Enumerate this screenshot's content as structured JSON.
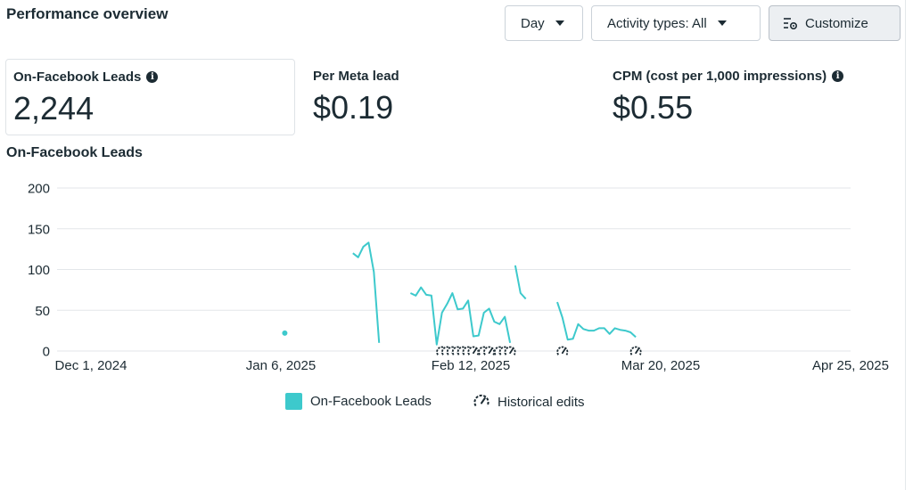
{
  "header": {
    "title": "Performance overview",
    "day_label": "Day",
    "activity_label": "Activity types: All",
    "customize_label": "Customize"
  },
  "metrics": [
    {
      "label": "On-Facebook Leads",
      "value": "2,244",
      "info": true
    },
    {
      "label": "Per Meta lead",
      "value": "$0.19",
      "info": false
    },
    {
      "label": "CPM (cost per 1,000 impressions)",
      "value": "$0.55",
      "info": true
    }
  ],
  "chart_title": "On-Facebook Leads",
  "colors": {
    "series": "#3dc9cc",
    "grid": "#e3e6ea",
    "text": "#1c2b33"
  },
  "chart_data": {
    "type": "line",
    "title": "On-Facebook Leads",
    "xlabel": "",
    "ylabel": "",
    "ylim": [
      0,
      200
    ],
    "y_ticks": [
      0,
      50,
      100,
      150,
      200
    ],
    "x_ticks": [
      "Dec 1, 2024",
      "Jan 6, 2025",
      "Feb 12, 2025",
      "Mar 20, 2025",
      "Apr 25, 2025"
    ],
    "x_range": [
      "2024-12-01",
      "2025-04-25"
    ],
    "grid": true,
    "legend_position": "bottom",
    "series": [
      {
        "name": "On-Facebook Leads",
        "segments": [
          [
            [
              "2025-01-07",
              22
            ]
          ],
          [
            [
              "2025-01-20",
              120
            ],
            [
              "2025-01-21",
              115
            ],
            [
              "2025-01-22",
              128
            ],
            [
              "2025-01-23",
              133
            ],
            [
              "2025-01-24",
              97
            ],
            [
              "2025-01-25",
              10
            ]
          ],
          [
            [
              "2025-01-31",
              71
            ],
            [
              "2025-02-01",
              68
            ],
            [
              "2025-02-02",
              78
            ],
            [
              "2025-02-03",
              69
            ],
            [
              "2025-02-04",
              68
            ],
            [
              "2025-02-05",
              8
            ],
            [
              "2025-02-06",
              47
            ],
            [
              "2025-02-07",
              58
            ],
            [
              "2025-02-08",
              71
            ],
            [
              "2025-02-09",
              51
            ],
            [
              "2025-02-10",
              52
            ],
            [
              "2025-02-11",
              62
            ],
            [
              "2025-02-12",
              18
            ],
            [
              "2025-02-13",
              19
            ],
            [
              "2025-02-14",
              47
            ],
            [
              "2025-02-15",
              52
            ],
            [
              "2025-02-16",
              36
            ],
            [
              "2025-02-17",
              33
            ],
            [
              "2025-02-18",
              42
            ],
            [
              "2025-02-19",
              10
            ]
          ],
          [
            [
              "2025-02-20",
              105
            ],
            [
              "2025-02-21",
              71
            ],
            [
              "2025-02-22",
              64
            ]
          ],
          [
            [
              "2025-02-28",
              60
            ],
            [
              "2025-03-01",
              41
            ],
            [
              "2025-03-02",
              14
            ],
            [
              "2025-03-03",
              15
            ],
            [
              "2025-03-04",
              33
            ],
            [
              "2025-03-05",
              27
            ],
            [
              "2025-03-06",
              25
            ],
            [
              "2025-03-07",
              25
            ],
            [
              "2025-03-08",
              28
            ],
            [
              "2025-03-09",
              28
            ],
            [
              "2025-03-10",
              21
            ],
            [
              "2025-03-11",
              28
            ],
            [
              "2025-03-12",
              26
            ],
            [
              "2025-03-13",
              25
            ],
            [
              "2025-03-14",
              23
            ],
            [
              "2025-03-15",
              17
            ]
          ]
        ]
      }
    ],
    "historical_edits": [
      "2025-02-06",
      "2025-02-07",
      "2025-02-08",
      "2025-02-09",
      "2025-02-10",
      "2025-02-11",
      "2025-02-12",
      "2025-02-14",
      "2025-02-15",
      "2025-02-17",
      "2025-02-18",
      "2025-02-19",
      "2025-03-01",
      "2025-03-15"
    ]
  },
  "legend": [
    {
      "label": "On-Facebook Leads",
      "icon": "teal-square"
    },
    {
      "label": "Historical edits",
      "icon": "gauge-icon"
    }
  ]
}
